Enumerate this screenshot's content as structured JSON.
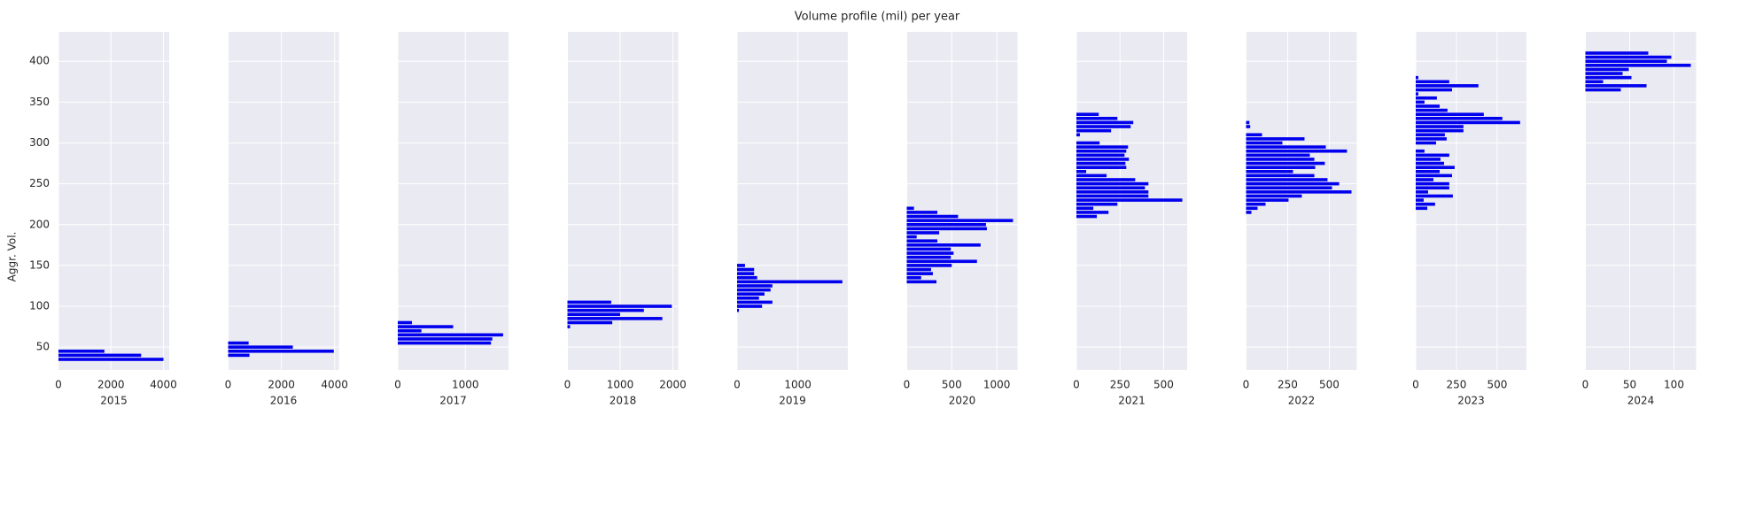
{
  "chart_data": {
    "type": "bar",
    "orientation": "horizontal",
    "title": "Volume profile (mil) per year",
    "ylabel": "Aggr. Vol.",
    "ylim": [
      22,
      436
    ],
    "yticks": [
      50,
      100,
      150,
      200,
      250,
      300,
      350,
      400
    ],
    "grid": true,
    "color": "#0000ee",
    "background": "#eaeaf2",
    "panels": [
      {
        "xlabel": "2015",
        "xlim": [
          0,
          4220
        ],
        "xticks": [
          0,
          2000,
          4000
        ],
        "y": [
          45,
          40,
          35
        ],
        "values": [
          1750,
          3150,
          4000
        ]
      },
      {
        "xlabel": "2016",
        "xlim": [
          0,
          4160
        ],
        "xticks": [
          0,
          2000,
          4000
        ],
        "y": [
          55,
          50,
          45,
          40
        ],
        "values": [
          770,
          2430,
          3970,
          800
        ]
      },
      {
        "xlabel": "2017",
        "xlim": [
          0,
          1640
        ],
        "xticks": [
          0,
          1000
        ],
        "y": [
          80,
          75,
          70,
          65,
          60,
          55
        ],
        "values": [
          210,
          820,
          350,
          1560,
          1400,
          1380
        ]
      },
      {
        "xlabel": "2018",
        "xlim": [
          0,
          2100
        ],
        "xticks": [
          0,
          1000,
          2000
        ],
        "y": [
          105,
          100,
          95,
          90,
          85,
          80,
          75
        ],
        "values": [
          830,
          1980,
          1450,
          1000,
          1800,
          850,
          50
        ]
      },
      {
        "xlabel": "2019",
        "xlim": [
          0,
          1820
        ],
        "xticks": [
          0,
          1000
        ],
        "y": [
          150,
          145,
          140,
          135,
          130,
          125,
          120,
          115,
          110,
          105,
          100,
          95
        ],
        "values": [
          130,
          280,
          280,
          330,
          1730,
          580,
          550,
          450,
          360,
          580,
          410,
          30
        ]
      },
      {
        "xlabel": "2020",
        "xlim": [
          0,
          1230
        ],
        "xticks": [
          0,
          500,
          1000
        ],
        "y": [
          220,
          215,
          210,
          205,
          200,
          195,
          190,
          185,
          180,
          175,
          170,
          165,
          160,
          155,
          150,
          145,
          140,
          135,
          130
        ],
        "values": [
          80,
          340,
          570,
          1180,
          880,
          890,
          360,
          110,
          340,
          820,
          490,
          520,
          490,
          780,
          500,
          270,
          290,
          160,
          330
        ]
      },
      {
        "xlabel": "2021",
        "xlim": [
          0,
          635
        ],
        "xticks": [
          0,
          250,
          500
        ],
        "y": [
          335,
          330,
          325,
          320,
          315,
          310,
          300,
          295,
          290,
          285,
          280,
          275,
          270,
          265,
          260,
          255,
          250,
          245,
          240,
          235,
          230,
          225,
          220,
          215,
          210
        ],
        "values": [
          128,
          235,
          326,
          311,
          199,
          20,
          133,
          296,
          286,
          276,
          301,
          281,
          286,
          56,
          173,
          337,
          413,
          393,
          413,
          413,
          607,
          235,
          97,
          184,
          117
        ]
      },
      {
        "xlabel": "2022",
        "xlim": [
          0,
          665
        ],
        "xticks": [
          0,
          250,
          500
        ],
        "y": [
          325,
          320,
          310,
          305,
          300,
          295,
          290,
          285,
          280,
          275,
          270,
          265,
          260,
          255,
          250,
          245,
          240,
          235,
          230,
          225,
          220,
          215
        ],
        "values": [
          20,
          25,
          96,
          351,
          218,
          479,
          606,
          383,
          410,
          473,
          415,
          282,
          410,
          489,
          559,
          516,
          633,
          335,
          255,
          117,
          69,
          32
        ]
      },
      {
        "xlabel": "2023",
        "xlim": [
          0,
          680
        ],
        "xticks": [
          0,
          250,
          500
        ],
        "y": [
          380,
          375,
          370,
          365,
          360,
          355,
          350,
          345,
          340,
          335,
          330,
          325,
          320,
          315,
          310,
          305,
          300,
          290,
          285,
          280,
          275,
          270,
          265,
          260,
          255,
          250,
          245,
          240,
          235,
          230,
          225,
          220
        ],
        "values": [
          16,
          206,
          385,
          223,
          16,
          130,
          54,
          147,
          195,
          418,
          532,
          641,
          293,
          293,
          179,
          190,
          125,
          54,
          206,
          152,
          174,
          239,
          147,
          223,
          109,
          206,
          206,
          76,
          228,
          49,
          119,
          71
        ]
      },
      {
        "xlabel": "2024",
        "xlim": [
          0,
          125
        ],
        "xticks": [
          0,
          50,
          100
        ],
        "y": [
          410,
          405,
          400,
          395,
          390,
          385,
          380,
          375,
          370,
          365
        ],
        "values": [
          71,
          97,
          92,
          119,
          49,
          42,
          52,
          20,
          69,
          40
        ]
      }
    ]
  }
}
